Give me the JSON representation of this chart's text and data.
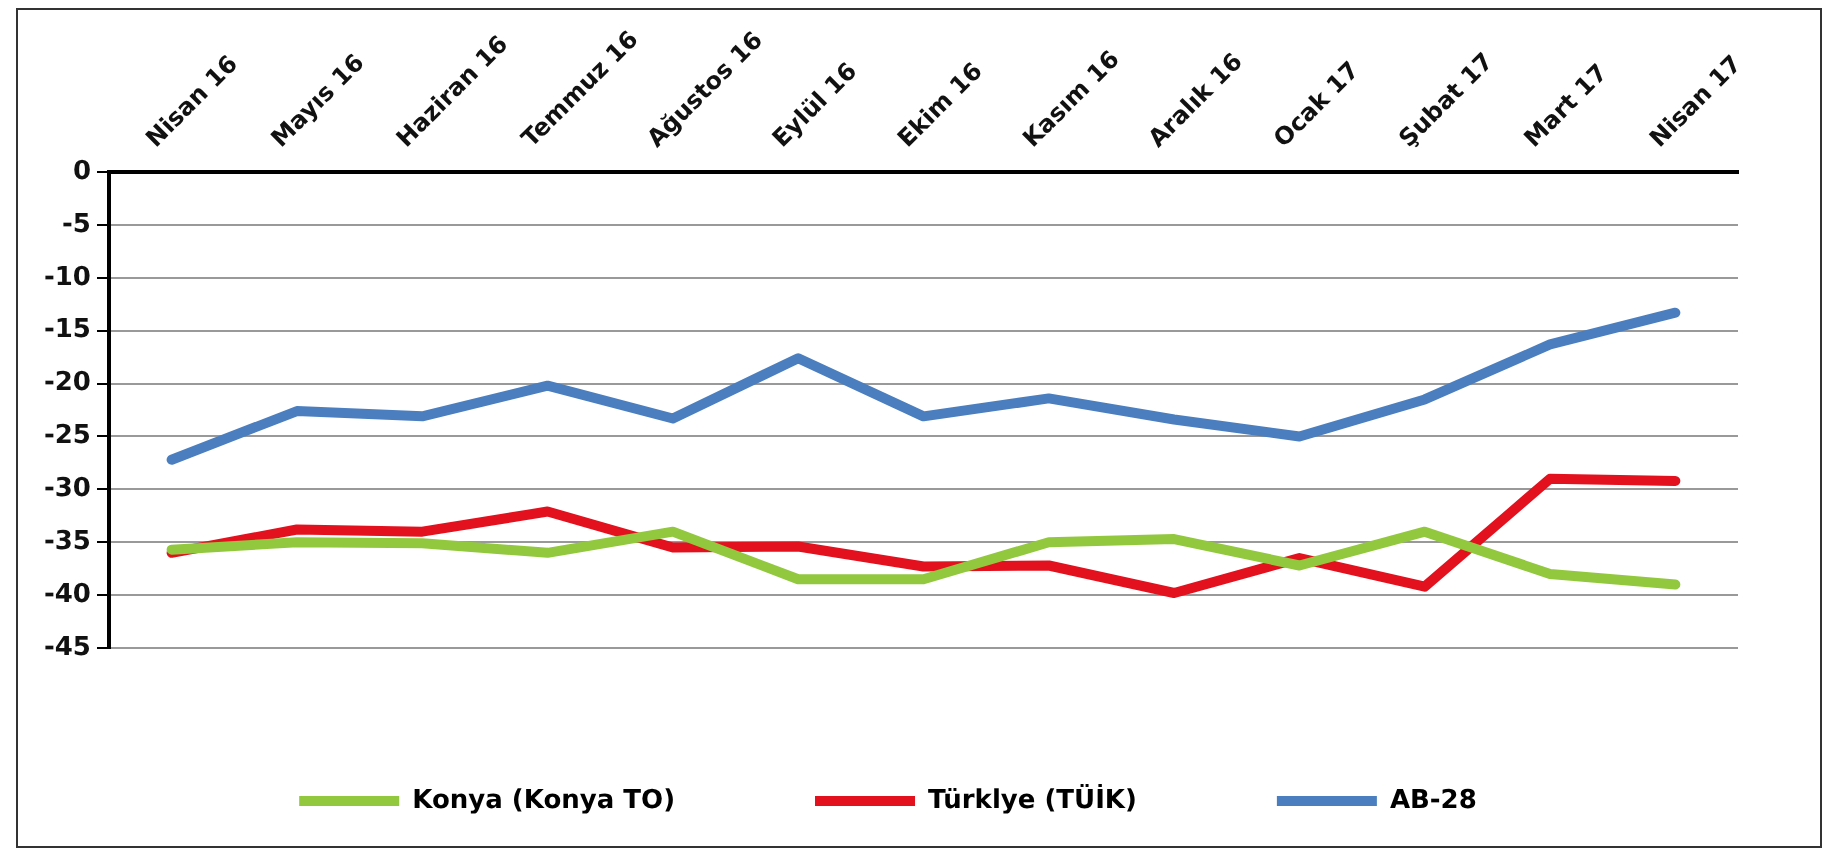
{
  "chart_data": {
    "type": "line",
    "categories": [
      "Nisan 16",
      "Mayıs 16",
      "Haziran 16",
      "Temmuz 16",
      "Ağustos 16",
      "Eylül 16",
      "Ekim 16",
      "Kasım 16",
      "Aralık 16",
      "Ocak 17",
      "Şubat 17",
      "Mart 17",
      "Nisan 17"
    ],
    "series": [
      {
        "name": "Konya (Konya TO)",
        "color": "#92c83e",
        "values": [
          -35.7,
          -35,
          -35.1,
          -36,
          -34,
          -38.5,
          -38.5,
          -35,
          -34.7,
          -37.2,
          -34,
          -38,
          -39
        ]
      },
      {
        "name": "Türklye (TÜİK)",
        "color": "#e3101e",
        "values": [
          -36,
          -33.8,
          -34,
          -32.1,
          -35.5,
          -35.4,
          -37.3,
          -37.2,
          -39.8,
          -36.5,
          -39.2,
          -29,
          -29.2
        ]
      },
      {
        "name": "AB-28",
        "color": "#4a7ebf",
        "values": [
          -27.2,
          -22.6,
          -23.1,
          -20.2,
          -23.3,
          -17.6,
          -23.1,
          -21.4,
          -23.4,
          -25,
          -21.5,
          -16.3,
          -13.3
        ]
      }
    ],
    "ylim": [
      -45,
      0
    ],
    "yticks": [
      0,
      -5,
      -10,
      -15,
      -20,
      -25,
      -30,
      -35,
      -40,
      -45
    ],
    "grid": "y",
    "legend": "bottom",
    "marker": "none",
    "line_style": "solid"
  }
}
